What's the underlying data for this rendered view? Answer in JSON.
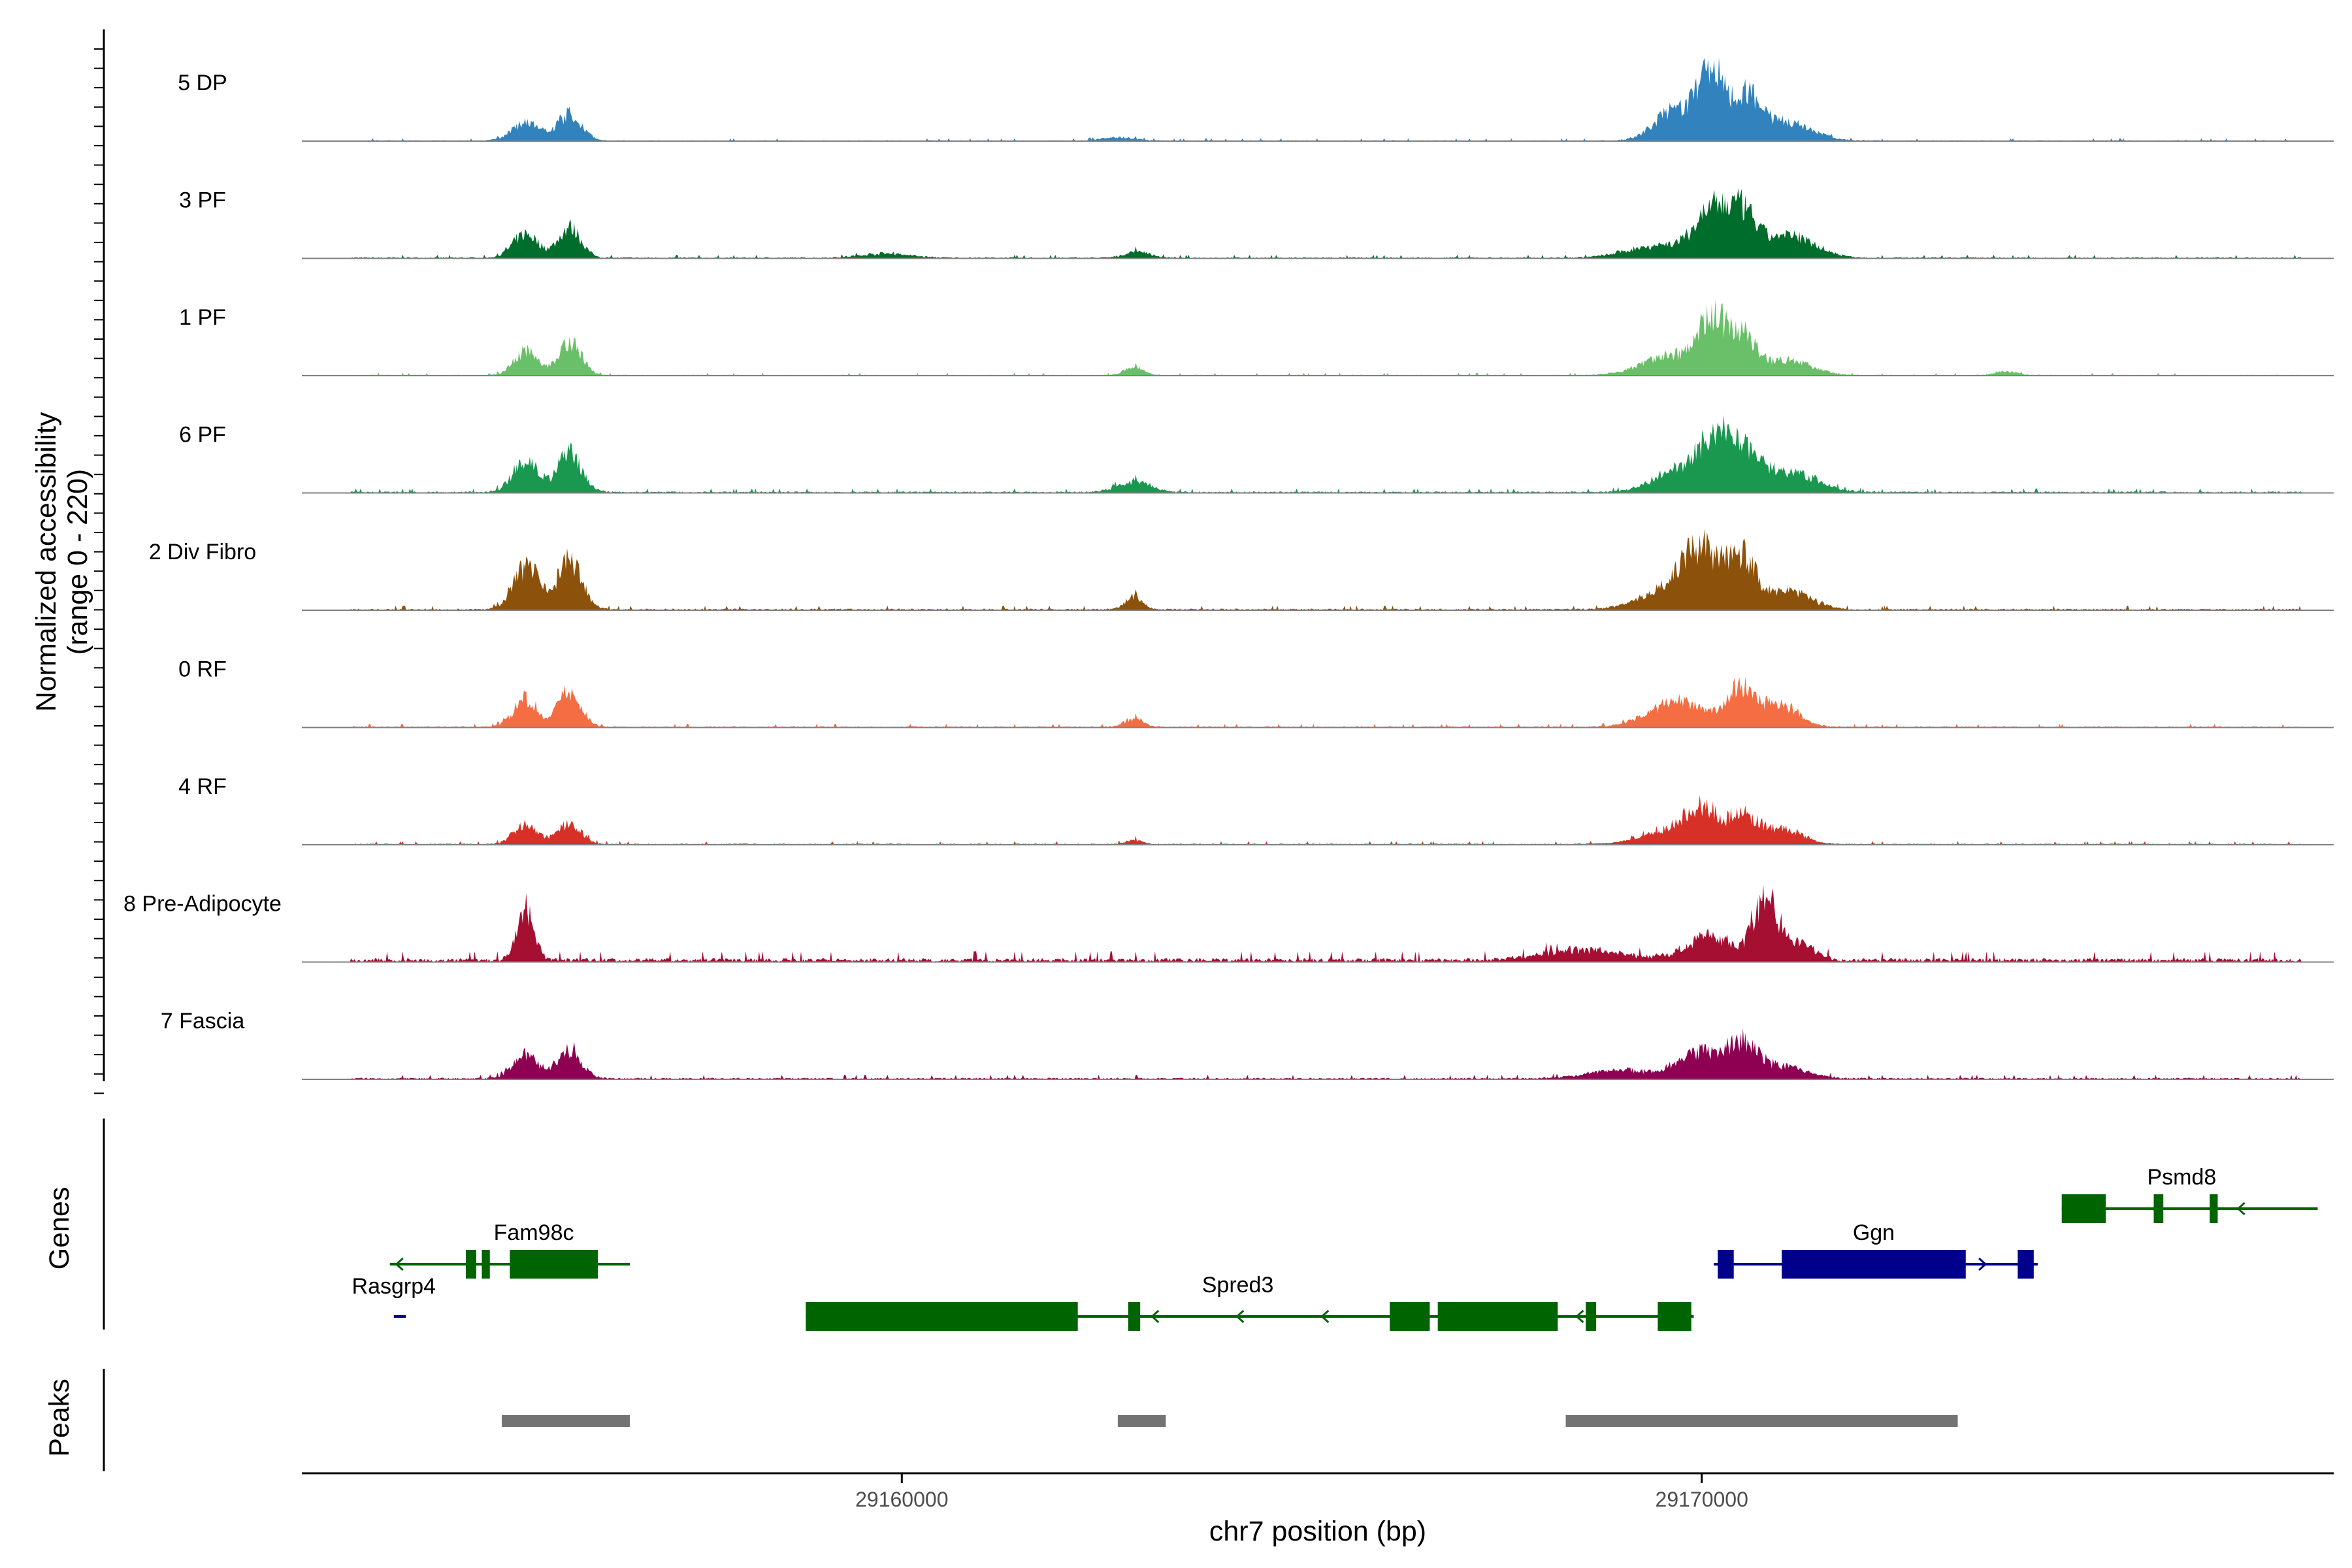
{
  "chart_data": {
    "type": "area",
    "title": "",
    "chromosome": "chr7",
    "xlabel": "chr7 position (bp)",
    "ylabel": "Normalized accessibility",
    "ylabel_range": "(range 0 - 220)",
    "ylim": [
      0,
      220
    ],
    "xlim": [
      29152500,
      29177900
    ],
    "x_ticks": [
      29160000,
      29170000
    ],
    "x_tick_labels": [
      "29160000",
      "29170000"
    ],
    "series": [
      {
        "name": "5 DP",
        "color": "#3182bd",
        "peaks": [
          [
            29155300,
            40,
            180
          ],
          [
            29155850,
            62,
            150
          ],
          [
            29162700,
            8,
            200
          ],
          [
            29169700,
            75,
            260
          ],
          [
            29170120,
            135,
            150
          ],
          [
            29170550,
            100,
            200
          ],
          [
            29171100,
            40,
            300
          ]
        ],
        "noise": 3,
        "seed": 3
      },
      {
        "name": "3 PF",
        "color": "#006d2c",
        "peaks": [
          [
            29155300,
            55,
            160
          ],
          [
            29155850,
            70,
            140
          ],
          [
            29159800,
            10,
            300
          ],
          [
            29162950,
            15,
            150
          ],
          [
            29169500,
            30,
            400
          ],
          [
            29170120,
            100,
            200
          ],
          [
            29170500,
            95,
            180
          ],
          [
            29171100,
            50,
            320
          ]
        ],
        "noise": 4,
        "seed": 7
      },
      {
        "name": "1 PF",
        "color": "#6abf69",
        "peaks": [
          [
            29155300,
            55,
            150
          ],
          [
            29155850,
            80,
            140
          ],
          [
            29162900,
            18,
            120
          ],
          [
            29169600,
            45,
            350
          ],
          [
            29170120,
            115,
            170
          ],
          [
            29170500,
            90,
            180
          ],
          [
            29171100,
            35,
            280
          ],
          [
            29173800,
            8,
            150
          ]
        ],
        "noise": 3,
        "seed": 11
      },
      {
        "name": "6 PF",
        "color": "#1a9850",
        "peaks": [
          [
            29155300,
            75,
            160
          ],
          [
            29155850,
            90,
            150
          ],
          [
            29162900,
            25,
            200
          ],
          [
            29169800,
            60,
            350
          ],
          [
            29170200,
            100,
            190
          ],
          [
            29170600,
            80,
            220
          ],
          [
            29171200,
            40,
            300
          ]
        ],
        "noise": 5,
        "seed": 13
      },
      {
        "name": "2 Div Fibro",
        "color": "#8c510a",
        "peaks": [
          [
            29155300,
            100,
            160
          ],
          [
            29155850,
            115,
            150
          ],
          [
            29162900,
            30,
            100
          ],
          [
            29169600,
            50,
            350
          ],
          [
            29170000,
            120,
            220
          ],
          [
            29170500,
            115,
            180
          ],
          [
            29171100,
            40,
            280
          ]
        ],
        "noise": 5,
        "seed": 17
      },
      {
        "name": "0 RF",
        "color": "#f46d43",
        "peaks": [
          [
            29155300,
            65,
            150
          ],
          [
            29155850,
            85,
            140
          ],
          [
            29162900,
            20,
            110
          ],
          [
            29169700,
            60,
            350
          ],
          [
            29170500,
            88,
            180
          ],
          [
            29171000,
            50,
            220
          ]
        ],
        "noise": 4,
        "seed": 19
      },
      {
        "name": "4 RF",
        "color": "#d73027",
        "peaks": [
          [
            29155300,
            45,
            150
          ],
          [
            29155850,
            50,
            140
          ],
          [
            29162900,
            10,
            100
          ],
          [
            29169600,
            30,
            350
          ],
          [
            29170000,
            70,
            200
          ],
          [
            29170500,
            65,
            180
          ],
          [
            29171000,
            35,
            250
          ]
        ],
        "noise": 4,
        "seed": 23
      },
      {
        "name": "8 Pre-Adipocyte",
        "color": "#a50f32",
        "peaks": [
          [
            29155300,
            120,
            110
          ],
          [
            29168500,
            25,
            500
          ],
          [
            29170100,
            55,
            300
          ],
          [
            29170800,
            135,
            150
          ],
          [
            29171200,
            40,
            200
          ]
        ],
        "noise": 12,
        "seed": 29
      },
      {
        "name": "7 Fascia",
        "color": "#8e0152",
        "peaks": [
          [
            29155300,
            55,
            160
          ],
          [
            29155850,
            65,
            150
          ],
          [
            29169000,
            20,
            400
          ],
          [
            29170000,
            60,
            250
          ],
          [
            29170500,
            75,
            180
          ],
          [
            29171000,
            30,
            300
          ]
        ],
        "noise": 5,
        "seed": 31
      }
    ],
    "genes_label": "Genes",
    "genes": [
      {
        "name": "Fam98c",
        "color": "#006400",
        "strand": "-",
        "row": 1,
        "start": 29153600,
        "end": 29156600,
        "exons": [
          [
            29154550,
            29154680
          ],
          [
            29154750,
            29154850
          ],
          [
            29155100,
            29156200
          ]
        ]
      },
      {
        "name": "Rasgrp4",
        "color": "#00008b",
        "strand": "+",
        "row": 2,
        "start": 29153650,
        "end": 29153800,
        "exons": []
      },
      {
        "name": "Spred3",
        "color": "#006400",
        "strand": "-",
        "row": 2,
        "start": 29158800,
        "end": 29169900,
        "exons": [
          [
            29158800,
            29162200
          ],
          [
            29162830,
            29162980
          ],
          [
            29166100,
            29166600
          ],
          [
            29166700,
            29168200
          ],
          [
            29168550,
            29168680
          ],
          [
            29169450,
            29169870
          ]
        ]
      },
      {
        "name": "Ggn",
        "color": "#00008b",
        "strand": "+",
        "row": 1,
        "start": 29170150,
        "end": 29174200,
        "exons": [
          [
            29170200,
            29170400
          ],
          [
            29171000,
            29173300
          ],
          [
            29173950,
            29174150
          ]
        ]
      },
      {
        "name": "Psmd8",
        "color": "#006400",
        "strand": "-",
        "row": 0,
        "start": 29174500,
        "end": 29177700,
        "exons": [
          [
            29174500,
            29175050
          ],
          [
            29175650,
            29175770
          ],
          [
            29176350,
            29176450
          ]
        ]
      }
    ],
    "peaks_label": "Peaks",
    "peak_regions": [
      [
        29155000,
        29156600
      ],
      [
        29162700,
        29163300
      ],
      [
        29168300,
        29173200
      ]
    ]
  }
}
